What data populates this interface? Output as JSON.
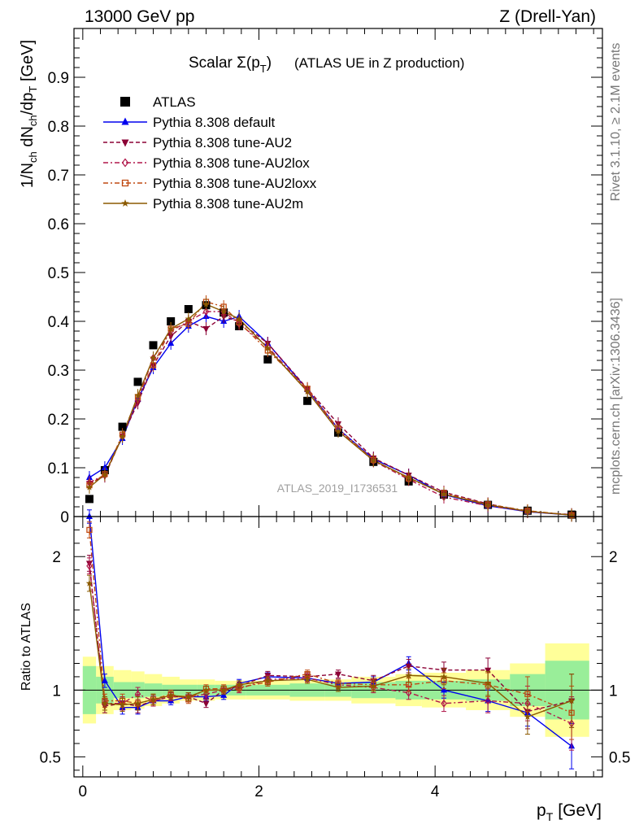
{
  "header": {
    "left": "13000 GeV pp",
    "right": "Z (Drell-Yan)"
  },
  "side_labels": {
    "rivet": "Rivet 3.1.10, ≥ 2.1M events",
    "mcplots": "mcplots.cern.ch [arXiv:1306.3436]"
  },
  "chart_data": [
    {
      "type": "scatter",
      "title_main": "Scalar Σ(p",
      "title_sub": "T",
      "title_close": ")",
      "title_rest": "(ATLAS UE in Z production)",
      "ylabel": "1/N_ch dN_ch/dp_T [GeV]",
      "watermark": "ATLAS_2019_I1736531",
      "xlim": [
        -0.1,
        5.9
      ],
      "ylim": [
        0,
        1.0
      ],
      "yticks": [
        0,
        0.1,
        0.2,
        0.3,
        0.4,
        0.5,
        0.6,
        0.7,
        0.8,
        0.9
      ],
      "ytick_labels": [
        "0",
        "0.1",
        "0.2",
        "0.3",
        "0.4",
        "0.5",
        "0.6",
        "0.7",
        "0.8",
        "0.9"
      ],
      "x": [
        0.075,
        0.25,
        0.45,
        0.625,
        0.8,
        1.0,
        1.2,
        1.4,
        1.6,
        1.775,
        2.1,
        2.55,
        2.9,
        3.3,
        3.7,
        4.1,
        4.6,
        5.05,
        5.55
      ],
      "series": [
        {
          "name": "ATLAS",
          "color": "#000000",
          "marker": "square",
          "line": "none",
          "values": [
            0.036,
            0.095,
            0.184,
            0.276,
            0.351,
            0.4,
            0.425,
            0.433,
            0.418,
            0.39,
            0.322,
            0.237,
            0.172,
            0.112,
            0.072,
            0.045,
            0.024,
            0.012,
            0.004
          ]
        },
        {
          "name": "Pythia 8.308 default",
          "color": "#0000ee",
          "marker": "triangle-up",
          "line": "solid",
          "values": [
            0.08,
            0.1,
            0.16,
            0.24,
            0.305,
            0.355,
            0.39,
            0.41,
            0.4,
            0.41,
            0.355,
            0.26,
            0.18,
            0.118,
            0.085,
            0.045,
            0.022,
            0.01,
            0.003
          ]
        },
        {
          "name": "Pythia 8.308 tune-AU2",
          "color": "#8b0035",
          "marker": "triangle-down",
          "line": "dashed",
          "values": [
            0.068,
            0.083,
            0.165,
            0.233,
            0.31,
            0.37,
            0.4,
            0.385,
            0.41,
            0.4,
            0.355,
            0.262,
            0.19,
            0.12,
            0.085,
            0.05,
            0.026,
            0.01,
            0.004
          ]
        },
        {
          "name": "Pythia 8.308 tune-AU2lox",
          "color": "#b0174a",
          "marker": "diamond",
          "line": "dashdot",
          "values": [
            0.07,
            0.085,
            0.165,
            0.24,
            0.325,
            0.38,
            0.4,
            0.42,
            0.42,
            0.395,
            0.348,
            0.258,
            0.178,
            0.114,
            0.076,
            0.04,
            0.022,
            0.011,
            0.003
          ]
        },
        {
          "name": "Pythia 8.308 tune-AU2loxx",
          "color": "#c04a12",
          "marker": "square-open",
          "line": "dashdot",
          "values": [
            0.064,
            0.087,
            0.168,
            0.245,
            0.31,
            0.385,
            0.395,
            0.44,
            0.43,
            0.398,
            0.34,
            0.262,
            0.18,
            0.116,
            0.078,
            0.048,
            0.025,
            0.012,
            0.003
          ]
        },
        {
          "name": "Pythia 8.308 tune-AU2m",
          "color": "#8b5a00",
          "marker": "star",
          "line": "solid",
          "values": [
            0.06,
            0.086,
            0.164,
            0.248,
            0.325,
            0.385,
            0.405,
            0.435,
            0.42,
            0.405,
            0.345,
            0.256,
            0.175,
            0.115,
            0.08,
            0.046,
            0.024,
            0.011,
            0.003
          ]
        }
      ]
    },
    {
      "type": "scatter",
      "ylabel": "Ratio to ATLAS",
      "xlabel_main": "p",
      "xlabel_sub": "T",
      "xlabel_unit": "[GeV]",
      "xlim": [
        -0.1,
        5.9
      ],
      "ylim": [
        0.35,
        2.3
      ],
      "xticks": [
        0,
        2,
        4
      ],
      "xtick_labels": [
        "0",
        "2",
        "4"
      ],
      "yticks": [
        0.5,
        1,
        2
      ],
      "ytick_labels": [
        "0.5",
        "1",
        "2"
      ],
      "x_edges": [
        0.0,
        0.15,
        0.35,
        0.55,
        0.7,
        0.9,
        1.1,
        1.3,
        1.5,
        1.7,
        1.85,
        2.35,
        2.75,
        3.05,
        3.55,
        3.85,
        4.35,
        4.85,
        5.25,
        5.75
      ],
      "band_green": [
        0.18,
        0.1,
        0.06,
        0.06,
        0.05,
        0.04,
        0.04,
        0.04,
        0.04,
        0.04,
        0.04,
        0.05,
        0.05,
        0.06,
        0.07,
        0.07,
        0.08,
        0.12,
        0.22
      ],
      "band_yellow": [
        0.25,
        0.18,
        0.15,
        0.14,
        0.12,
        0.1,
        0.08,
        0.08,
        0.07,
        0.07,
        0.07,
        0.08,
        0.08,
        0.1,
        0.12,
        0.13,
        0.15,
        0.2,
        0.35
      ],
      "x": [
        0.075,
        0.25,
        0.45,
        0.625,
        0.8,
        1.0,
        1.2,
        1.4,
        1.6,
        1.775,
        2.1,
        2.55,
        2.9,
        3.3,
        3.7,
        4.1,
        4.6,
        5.05,
        5.55
      ],
      "series": [
        {
          "name": "Pythia 8.308 default",
          "color": "#0000ee",
          "marker": "triangle-up",
          "line": "solid",
          "values": [
            2.3,
            1.07,
            0.87,
            0.87,
            0.92,
            0.92,
            0.95,
            0.95,
            0.96,
            1.05,
            1.1,
            1.09,
            1.05,
            1.06,
            1.2,
            1.0,
            0.92,
            0.83,
            0.58
          ],
          "errors": [
            0.05,
            0.05,
            0.05,
            0.05,
            0.03,
            0.03,
            0.03,
            0.03,
            0.03,
            0.03,
            0.03,
            0.03,
            0.03,
            0.04,
            0.05,
            0.06,
            0.08,
            0.1,
            0.17
          ]
        },
        {
          "name": "Pythia 8.308 tune-AU2",
          "color": "#8b0035",
          "marker": "triangle-down",
          "line": "dashed",
          "values": [
            1.95,
            0.88,
            0.9,
            0.88,
            0.92,
            0.95,
            0.95,
            0.9,
            1.0,
            1.03,
            1.11,
            1.1,
            1.12,
            1.07,
            1.18,
            1.15,
            1.15,
            0.84,
            0.92
          ],
          "errors": [
            0.06,
            0.05,
            0.05,
            0.05,
            0.04,
            0.03,
            0.03,
            0.03,
            0.03,
            0.03,
            0.03,
            0.03,
            0.03,
            0.04,
            0.05,
            0.06,
            0.09,
            0.13,
            0.2
          ]
        },
        {
          "name": "Pythia 8.308 tune-AU2lox",
          "color": "#b0174a",
          "marker": "diamond",
          "line": "dashdot",
          "values": [
            1.93,
            0.9,
            0.9,
            0.97,
            0.92,
            0.95,
            0.95,
            0.97,
            1.0,
            1.01,
            1.08,
            1.09,
            1.04,
            1.02,
            0.98,
            0.9,
            0.92,
            0.9,
            0.75
          ],
          "errors": [
            0.06,
            0.05,
            0.05,
            0.05,
            0.04,
            0.03,
            0.03,
            0.03,
            0.03,
            0.03,
            0.03,
            0.03,
            0.03,
            0.04,
            0.05,
            0.06,
            0.09,
            0.13,
            0.2
          ]
        },
        {
          "name": "Pythia 8.308 tune-AU2loxx",
          "color": "#c04a12",
          "marker": "square-open",
          "line": "dashdot",
          "values": [
            2.2,
            0.92,
            0.92,
            0.9,
            0.93,
            0.97,
            0.93,
            1.01,
            1.01,
            1.02,
            1.06,
            1.12,
            1.05,
            1.04,
            1.04,
            1.07,
            1.04,
            0.97,
            0.83
          ],
          "errors": [
            0.06,
            0.05,
            0.05,
            0.05,
            0.04,
            0.03,
            0.03,
            0.03,
            0.03,
            0.03,
            0.03,
            0.03,
            0.03,
            0.04,
            0.05,
            0.06,
            0.09,
            0.13,
            0.2
          ]
        },
        {
          "name": "Pythia 8.308 tune-AU2m",
          "color": "#8b5a00",
          "marker": "star",
          "line": "solid",
          "values": [
            1.8,
            0.9,
            0.89,
            0.9,
            0.93,
            0.96,
            0.95,
            1.0,
            1.0,
            1.04,
            1.07,
            1.08,
            1.02,
            1.03,
            1.11,
            1.1,
            1.05,
            0.8,
            0.92
          ],
          "errors": [
            0.06,
            0.05,
            0.05,
            0.05,
            0.04,
            0.03,
            0.03,
            0.03,
            0.03,
            0.03,
            0.03,
            0.03,
            0.03,
            0.04,
            0.05,
            0.06,
            0.09,
            0.13,
            0.2
          ]
        }
      ]
    }
  ]
}
